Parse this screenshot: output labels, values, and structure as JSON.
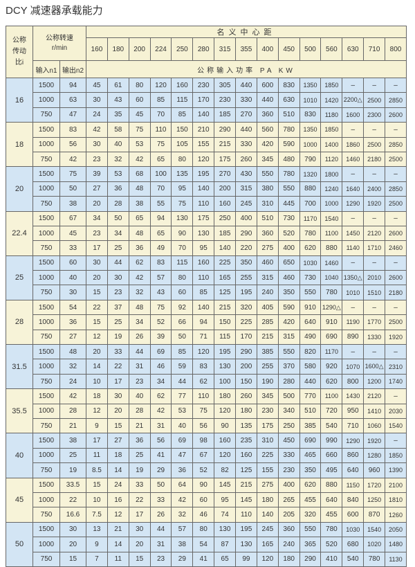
{
  "title": "DCY 减速器承载能力",
  "header": {
    "ratio_label": "公称传动比i",
    "speed_label": "公称转速",
    "speed_unit": "r/min",
    "input_label": "输入n1",
    "output_label": "输出n2",
    "center_distance_label": "名义中心距",
    "power_label": "公称输入功率 PA KW",
    "center_distances": [
      "160",
      "180",
      "200",
      "224",
      "250",
      "280",
      "315",
      "355",
      "400",
      "450",
      "500",
      "560",
      "630",
      "710",
      "800"
    ]
  },
  "colors": {
    "blue_band": "#d3e5f4",
    "yellow_band": "#f7f3d8"
  },
  "groups": [
    {
      "ratio": "16",
      "rows": [
        [
          "1500",
          "94",
          "45",
          "61",
          "80",
          "120",
          "160",
          "230",
          "305",
          "440",
          "600",
          "830",
          "1350",
          "1850",
          "–",
          "–",
          "–"
        ],
        [
          "1000",
          "63",
          "30",
          "43",
          "60",
          "85",
          "115",
          "170",
          "230",
          "330",
          "440",
          "630",
          "1010",
          "1420",
          "2200△",
          "2500",
          "2850"
        ],
        [
          "750",
          "47",
          "24",
          "35",
          "45",
          "70",
          "85",
          "140",
          "185",
          "270",
          "360",
          "510",
          "830",
          "1180",
          "1600",
          "2300",
          "2600"
        ]
      ]
    },
    {
      "ratio": "18",
      "rows": [
        [
          "1500",
          "83",
          "42",
          "58",
          "75",
          "110",
          "150",
          "210",
          "290",
          "440",
          "560",
          "780",
          "1350",
          "1850",
          "–",
          "–",
          "–"
        ],
        [
          "1000",
          "56",
          "30",
          "40",
          "53",
          "75",
          "105",
          "155",
          "215",
          "330",
          "420",
          "590",
          "1000",
          "1400",
          "1860",
          "2500",
          "2850"
        ],
        [
          "750",
          "42",
          "23",
          "32",
          "42",
          "65",
          "80",
          "120",
          "175",
          "260",
          "345",
          "480",
          "790",
          "1120",
          "1460",
          "2180",
          "2500"
        ]
      ]
    },
    {
      "ratio": "20",
      "rows": [
        [
          "1500",
          "75",
          "39",
          "53",
          "68",
          "100",
          "135",
          "195",
          "270",
          "430",
          "550",
          "780",
          "1320",
          "1800",
          "–",
          "–",
          "–"
        ],
        [
          "1000",
          "50",
          "27",
          "36",
          "48",
          "70",
          "95",
          "140",
          "200",
          "315",
          "380",
          "550",
          "880",
          "1240",
          "1640",
          "2400",
          "2850"
        ],
        [
          "750",
          "38",
          "20",
          "28",
          "38",
          "55",
          "75",
          "110",
          "160",
          "245",
          "310",
          "445",
          "700",
          "1000",
          "1290",
          "1920",
          "2500"
        ]
      ]
    },
    {
      "ratio": "22.4",
      "rows": [
        [
          "1500",
          "67",
          "34",
          "50",
          "65",
          "94",
          "130",
          "175",
          "250",
          "400",
          "510",
          "730",
          "1170",
          "1540",
          "–",
          "–",
          "–"
        ],
        [
          "1000",
          "45",
          "23",
          "34",
          "48",
          "65",
          "90",
          "130",
          "185",
          "290",
          "360",
          "520",
          "780",
          "1100",
          "1450",
          "2120",
          "2600"
        ],
        [
          "750",
          "33",
          "17",
          "25",
          "36",
          "49",
          "70",
          "95",
          "140",
          "220",
          "275",
          "400",
          "620",
          "880",
          "1140",
          "1710",
          "2460"
        ]
      ]
    },
    {
      "ratio": "25",
      "rows": [
        [
          "1500",
          "60",
          "30",
          "44",
          "62",
          "83",
          "115",
          "160",
          "225",
          "350",
          "460",
          "650",
          "1030",
          "1460",
          "–",
          "–",
          "–"
        ],
        [
          "1000",
          "40",
          "20",
          "30",
          "42",
          "57",
          "80",
          "110",
          "165",
          "255",
          "315",
          "460",
          "730",
          "1040",
          "1350△",
          "2010",
          "2600"
        ],
        [
          "750",
          "30",
          "15",
          "23",
          "32",
          "43",
          "60",
          "85",
          "125",
          "195",
          "240",
          "350",
          "550",
          "780",
          "1010",
          "1510",
          "2180"
        ]
      ]
    },
    {
      "ratio": "28",
      "rows": [
        [
          "1500",
          "54",
          "22",
          "37",
          "48",
          "75",
          "92",
          "140",
          "215",
          "320",
          "405",
          "590",
          "910",
          "1290△",
          "–",
          "–",
          "–"
        ],
        [
          "1000",
          "36",
          "15",
          "25",
          "34",
          "52",
          "66",
          "94",
          "150",
          "225",
          "285",
          "420",
          "640",
          "910",
          "1190",
          "1770",
          "2500"
        ],
        [
          "750",
          "27",
          "12",
          "19",
          "26",
          "39",
          "50",
          "71",
          "115",
          "170",
          "215",
          "315",
          "490",
          "690",
          "890",
          "1330",
          "1920"
        ]
      ]
    },
    {
      "ratio": "31.5",
      "rows": [
        [
          "1500",
          "48",
          "20",
          "33",
          "44",
          "69",
          "85",
          "120",
          "195",
          "290",
          "385",
          "550",
          "820",
          "1170",
          "–",
          "–",
          "–"
        ],
        [
          "1000",
          "32",
          "14",
          "22",
          "31",
          "46",
          "59",
          "83",
          "130",
          "200",
          "255",
          "370",
          "580",
          "920",
          "1070",
          "1600△",
          "2310"
        ],
        [
          "750",
          "24",
          "10",
          "17",
          "23",
          "34",
          "44",
          "62",
          "100",
          "150",
          "190",
          "280",
          "440",
          "620",
          "800",
          "1200",
          "1740"
        ]
      ]
    },
    {
      "ratio": "35.5",
      "rows": [
        [
          "1500",
          "42",
          "18",
          "30",
          "40",
          "62",
          "77",
          "110",
          "180",
          "260",
          "345",
          "500",
          "770",
          "1100",
          "1430",
          "2120",
          "–"
        ],
        [
          "1000",
          "28",
          "12",
          "20",
          "28",
          "42",
          "53",
          "75",
          "120",
          "180",
          "230",
          "340",
          "510",
          "720",
          "950",
          "1410",
          "2030"
        ],
        [
          "750",
          "21",
          "9",
          "15",
          "21",
          "31",
          "40",
          "56",
          "90",
          "135",
          "175",
          "250",
          "385",
          "540",
          "710",
          "1060",
          "1540"
        ]
      ]
    },
    {
      "ratio": "40",
      "rows": [
        [
          "1500",
          "38",
          "17",
          "27",
          "36",
          "56",
          "69",
          "98",
          "160",
          "235",
          "310",
          "450",
          "690",
          "990",
          "1290",
          "1920",
          "–"
        ],
        [
          "1000",
          "25",
          "11",
          "18",
          "25",
          "41",
          "47",
          "67",
          "120",
          "160",
          "225",
          "330",
          "465",
          "660",
          "860",
          "1280",
          "1850"
        ],
        [
          "750",
          "19",
          "8.5",
          "14",
          "19",
          "29",
          "36",
          "52",
          "82",
          "125",
          "155",
          "230",
          "350",
          "495",
          "640",
          "960",
          "1390"
        ]
      ]
    },
    {
      "ratio": "45",
      "rows": [
        [
          "1500",
          "33.5",
          "15",
          "24",
          "33",
          "50",
          "64",
          "90",
          "145",
          "215",
          "275",
          "400",
          "620",
          "880",
          "1150",
          "1720",
          "2100"
        ],
        [
          "1000",
          "22",
          "10",
          "16",
          "22",
          "33",
          "42",
          "60",
          "95",
          "145",
          "180",
          "265",
          "455",
          "640",
          "840",
          "1250",
          "1810"
        ],
        [
          "750",
          "16.6",
          "7.5",
          "12",
          "17",
          "26",
          "32",
          "46",
          "74",
          "110",
          "140",
          "205",
          "320",
          "455",
          "600",
          "870",
          "1260"
        ]
      ]
    },
    {
      "ratio": "50",
      "rows": [
        [
          "1500",
          "30",
          "13",
          "21",
          "30",
          "44",
          "57",
          "80",
          "130",
          "195",
          "245",
          "360",
          "550",
          "780",
          "1030",
          "1540",
          "2050"
        ],
        [
          "1000",
          "20",
          "9",
          "14",
          "20",
          "31",
          "38",
          "54",
          "87",
          "130",
          "165",
          "240",
          "365",
          "520",
          "680",
          "1020",
          "1480"
        ],
        [
          "750",
          "15",
          "7",
          "11",
          "15",
          "23",
          "29",
          "41",
          "65",
          "99",
          "120",
          "180",
          "290",
          "410",
          "540",
          "780",
          "1130"
        ]
      ]
    }
  ]
}
